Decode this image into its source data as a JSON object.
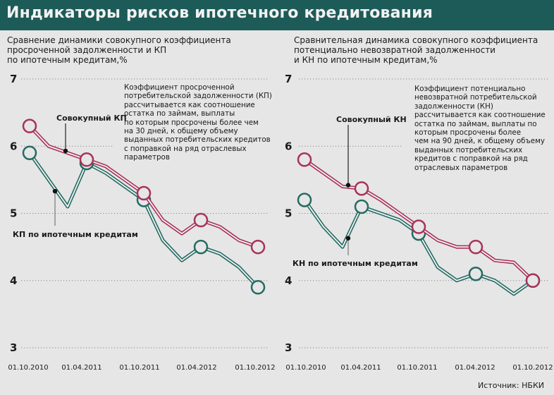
{
  "title": "Индикаторы рисков ипотечного кредитования",
  "source": "Источник: НБКИ",
  "colors": {
    "header": "#1d5b58",
    "aggregate": "#a8325a",
    "mortgage": "#246b63",
    "background": "#e6e6e6"
  },
  "chart_data": [
    {
      "type": "line",
      "title": "Сравнение динамики совокупного коэффициента\nпросроченной задолженности и КП\nпо ипотечным кредитам,%",
      "note": "Коэффициент просроченной\nпотребительской задолженности (КП)\nрассчитывается как соотношение\nостатка по займам, выплаты\nпо которым просрочены более чем\nна 30 дней, к общему объему\nвыданных потребительских кредитов\nс поправкой на ряд отраслевых\nпараметров",
      "ylim": [
        3,
        7
      ],
      "yticks": [
        "3",
        "4",
        "5",
        "6",
        "7"
      ],
      "xtick_labels": [
        "01.10.2010",
        "01.04.2011",
        "01.10.2011",
        "01.04.2012",
        "01.10.2012"
      ],
      "x_points": 13,
      "series": [
        {
          "name": "Совокупный КП",
          "color": "#a8325a",
          "values": [
            6.3,
            6.0,
            5.9,
            5.8,
            5.7,
            5.5,
            5.3,
            4.9,
            4.7,
            4.9,
            4.8,
            4.6,
            4.5
          ]
        },
        {
          "name": "КП по ипотечным кредитам",
          "color": "#246b63",
          "values": [
            5.9,
            5.5,
            5.1,
            5.75,
            5.6,
            5.4,
            5.2,
            4.6,
            4.3,
            4.5,
            4.4,
            4.2,
            3.9
          ]
        }
      ]
    },
    {
      "type": "line",
      "title": "Сравнительная динамика совокупного коэффициента\nпотенциально невозвратной задолженности\nи КН по ипотечным кредитам,%",
      "note": "Коэффициент потенциально\nневозвратной потребительской\nзадолженности (КН)\nрассчитывается как соотношение\nостатка по займам, выплаты по\nкоторым просрочены более\nчем на 90 дней, к общему объему\nвыданных потребительских\nкредитов с поправкой на ряд\nотраслевых параметров",
      "ylim": [
        3,
        7
      ],
      "yticks": [
        "3",
        "4",
        "5",
        "6",
        "7"
      ],
      "xtick_labels": [
        "01.10.2010",
        "01.04.2011",
        "01.10.2011",
        "01.04.2012",
        "01.10.2012"
      ],
      "x_points": 13,
      "series": [
        {
          "name": "Совокупный КН",
          "color": "#a8325a",
          "values": [
            5.8,
            5.6,
            5.4,
            5.37,
            5.2,
            5.0,
            4.8,
            4.6,
            4.5,
            4.5,
            4.3,
            4.27,
            4.0
          ]
        },
        {
          "name": "КН по ипотечным кредитам",
          "color": "#246b63",
          "values": [
            5.2,
            4.8,
            4.5,
            5.1,
            5.0,
            4.9,
            4.7,
            4.2,
            4.0,
            4.1,
            4.0,
            3.8,
            4.0
          ]
        }
      ]
    }
  ]
}
